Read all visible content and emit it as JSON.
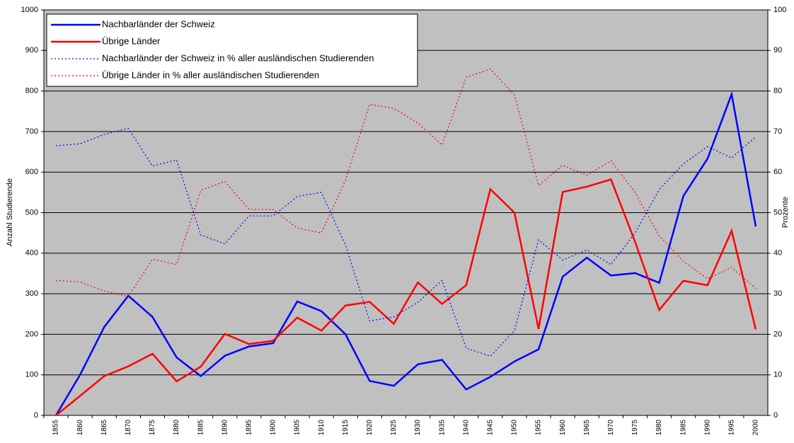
{
  "chart_data": {
    "type": "line",
    "ylabel": "Anzahl Studierende",
    "y2label": "Prozente",
    "categories": [
      "1855",
      "1860",
      "1865",
      "1870",
      "1875",
      "1880",
      "1885",
      "1890",
      "1895",
      "1900",
      "1905",
      "1910",
      "1915",
      "1920",
      "1925",
      "1930",
      "1935",
      "1940",
      "1945",
      "1950",
      "1955",
      "1960",
      "1965",
      "1970",
      "1975",
      "1980",
      "1985",
      "1990",
      "1995",
      "2000"
    ],
    "ylim": [
      0,
      1000
    ],
    "yticks": [
      0,
      100,
      200,
      300,
      400,
      500,
      600,
      700,
      800,
      900,
      1000
    ],
    "y2lim": [
      0,
      100
    ],
    "y2ticks": [
      0,
      10,
      20,
      30,
      40,
      50,
      60,
      70,
      80,
      90,
      100
    ],
    "grid": true,
    "legend": "upper left",
    "series": [
      {
        "name": "Nachbarländer der Schweiz",
        "color": "#0000ff",
        "dash": "solid",
        "values": [
          0,
          100,
          218,
          295,
          243,
          143,
          97,
          147,
          170,
          178,
          281,
          257,
          200,
          85,
          73,
          126,
          137,
          64,
          95,
          133,
          163,
          342,
          389,
          345,
          351,
          327,
          541,
          633,
          792,
          466
        ]
      },
      {
        "name": "Übrige Länder",
        "color": "#ff0000",
        "dash": "solid",
        "values": [
          0,
          48,
          97,
          121,
          152,
          84,
          120,
          201,
          176,
          184,
          241,
          209,
          271,
          280,
          226,
          328,
          275,
          321,
          558,
          500,
          213,
          551,
          564,
          582,
          428,
          260,
          332,
          321,
          455,
          212
        ]
      },
      {
        "name": "Nachbarländer der Schweiz in % aller ausländischen Studierenden",
        "color": "#0000ff",
        "dash": "dotted",
        "axis": "y2",
        "values": [
          66.5,
          67,
          69.3,
          70.8,
          61.5,
          63,
          44.5,
          42.3,
          49.2,
          49.2,
          54,
          55,
          42,
          23.3,
          24.3,
          27.9,
          33.3,
          16.6,
          14.6,
          20.9,
          43.3,
          38.3,
          40.8,
          37.2,
          45,
          55.7,
          62,
          66.3,
          63.5,
          68.7
        ]
      },
      {
        "name": "Übrige Länder in % aller ausländischen Studierenden",
        "color": "#ff0000",
        "dash": "dotted",
        "axis": "y2",
        "values": [
          33.3,
          32.9,
          30.7,
          29.3,
          38.5,
          37.2,
          55.5,
          57.7,
          50.8,
          50.8,
          46.2,
          45,
          58,
          76.7,
          75.7,
          72.1,
          66.7,
          83.4,
          85.4,
          79.1,
          56.7,
          61.7,
          59.2,
          62.8,
          55,
          44.3,
          38,
          33.7,
          36.5,
          31.3
        ]
      }
    ]
  }
}
